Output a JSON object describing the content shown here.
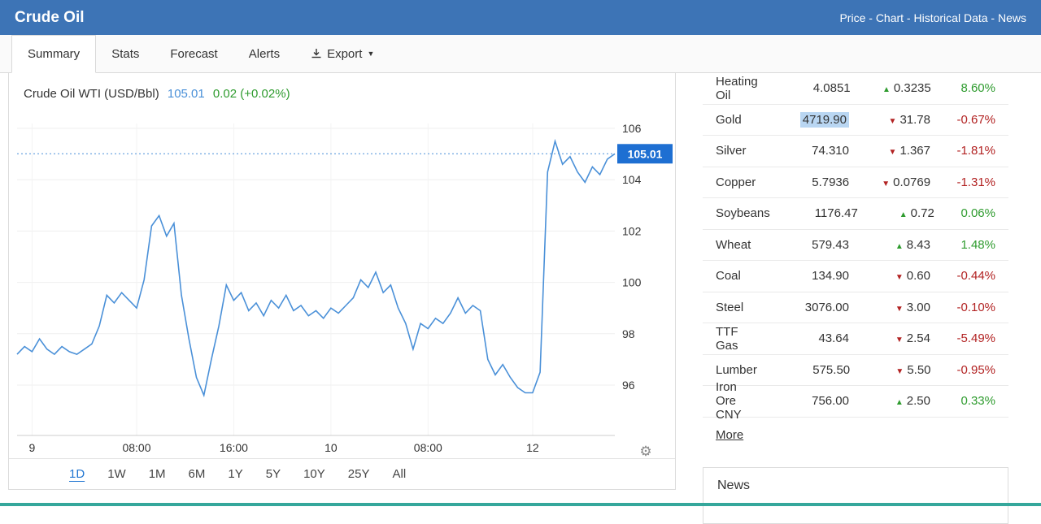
{
  "header": {
    "title": "Crude Oil",
    "separator": " - ",
    "links": [
      "Price",
      "Chart",
      "Historical Data",
      "News"
    ]
  },
  "tabs": {
    "items": [
      "Summary",
      "Stats",
      "Forecast",
      "Alerts"
    ],
    "active": "Summary",
    "export_label": "Export"
  },
  "chart": {
    "title": "Crude Oil WTI (USD/Bbl)",
    "price": "105.01",
    "change": "0.02 (+0.02%)"
  },
  "chart_data": {
    "type": "line",
    "title": "Crude Oil WTI (USD/Bbl)",
    "series": [
      {
        "name": "Crude Oil WTI",
        "values": [
          97.2,
          97.5,
          97.3,
          97.8,
          97.4,
          97.2,
          97.5,
          97.3,
          97.2,
          97.4,
          97.6,
          98.3,
          99.5,
          99.2,
          99.6,
          99.3,
          99.0,
          100.1,
          102.2,
          102.6,
          101.8,
          102.3,
          99.5,
          97.8,
          96.3,
          95.6,
          97.0,
          98.3,
          99.9,
          99.3,
          99.6,
          98.9,
          99.2,
          98.7,
          99.3,
          99.0,
          99.5,
          98.9,
          99.1,
          98.7,
          98.9,
          98.6,
          99.0,
          98.8,
          99.1,
          99.4,
          100.1,
          99.8,
          100.4,
          99.6,
          99.9,
          99.0,
          98.4,
          97.4,
          98.4,
          98.2,
          98.6,
          98.4,
          98.8,
          99.4,
          98.8,
          99.1,
          98.9,
          97.0,
          96.4,
          96.8,
          96.3,
          95.9,
          95.7,
          95.7,
          96.5,
          104.3,
          105.5,
          104.6,
          104.9,
          104.3,
          103.9,
          104.5,
          104.2,
          104.8,
          105.01
        ]
      }
    ],
    "x_tick_indices": [
      2,
      16,
      29,
      42,
      55,
      69
    ],
    "x_tick_labels": [
      "9",
      "08:00",
      "16:00",
      "10",
      "08:00",
      "12"
    ],
    "y_ticks": [
      96,
      98,
      100,
      102,
      104,
      106
    ],
    "ylim": [
      94,
      106.4
    ],
    "current_price": 105.01,
    "line_color": "#4a90d8",
    "price_label_bg": "#1e6fd2",
    "grid": true,
    "legend": false,
    "xlabel": "",
    "ylabel": ""
  },
  "ranges": {
    "items": [
      "1D",
      "1W",
      "1M",
      "6M",
      "1Y",
      "5Y",
      "10Y",
      "25Y",
      "All"
    ],
    "active": "1D"
  },
  "markets": {
    "rows": [
      {
        "name": "Heating Oil",
        "price": "4.0851",
        "direction": "up",
        "change": "0.3235",
        "percent": "8.60%"
      },
      {
        "name": "Gold",
        "price": "4719.90",
        "direction": "down",
        "change": "31.78",
        "percent": "-0.67%",
        "highlight": true
      },
      {
        "name": "Silver",
        "price": "74.310",
        "direction": "down",
        "change": "1.367",
        "percent": "-1.81%"
      },
      {
        "name": "Copper",
        "price": "5.7936",
        "direction": "down",
        "change": "0.0769",
        "percent": "-1.31%"
      },
      {
        "name": "Soybeans",
        "price": "1176.47",
        "direction": "up",
        "change": "0.72",
        "percent": "0.06%"
      },
      {
        "name": "Wheat",
        "price": "579.43",
        "direction": "up",
        "change": "8.43",
        "percent": "1.48%"
      },
      {
        "name": "Coal",
        "price": "134.90",
        "direction": "down",
        "change": "0.60",
        "percent": "-0.44%"
      },
      {
        "name": "Steel",
        "price": "3076.00",
        "direction": "down",
        "change": "3.00",
        "percent": "-0.10%"
      },
      {
        "name": "TTF Gas",
        "price": "43.64",
        "direction": "down",
        "change": "2.54",
        "percent": "-5.49%"
      },
      {
        "name": "Lumber",
        "price": "575.50",
        "direction": "down",
        "change": "5.50",
        "percent": "-0.95%"
      },
      {
        "name": "Iron Ore CNY",
        "price": "756.00",
        "direction": "up",
        "change": "2.50",
        "percent": "0.33%"
      }
    ],
    "more_label": "More"
  },
  "news": {
    "title": "News"
  },
  "icons": {
    "up_arrow": "▲",
    "down_arrow": "▼",
    "gear": "⚙",
    "caret": "▼"
  },
  "colors": {
    "up": "#2e9b2e",
    "down": "#b22222",
    "accent_blue": "#4a90d8",
    "header_blue": "#3d74b6",
    "range_blue": "#2176d2",
    "highlight_blue": "#b9d6f2",
    "bottom_bar": "#35a79b"
  }
}
